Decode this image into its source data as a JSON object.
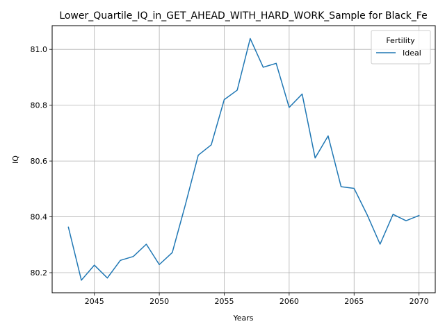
{
  "chart_data": {
    "type": "line",
    "title": "Lower_Quartile_IQ_in_GET_AHEAD_WITH_HARD_WORK_Sample for Black_Fe",
    "xlabel": "Years",
    "ylabel": "IQ",
    "xlim": [
      2041.75,
      2071.25
    ],
    "ylim": [
      80.128,
      81.085
    ],
    "x_ticks": [
      2045,
      2050,
      2055,
      2060,
      2065,
      2070
    ],
    "y_ticks": [
      80.2,
      80.4,
      80.6,
      80.8,
      81.0
    ],
    "x_tick_labels": [
      "2045",
      "2050",
      "2055",
      "2060",
      "2065",
      "2070"
    ],
    "y_tick_labels": [
      "80.2",
      "80.4",
      "80.6",
      "80.8",
      "81.0"
    ],
    "grid": true,
    "legend": {
      "title": "Fertility",
      "placement": "top-right",
      "entries": [
        "Ideal"
      ]
    },
    "series": [
      {
        "name": "Ideal",
        "color": "#1f77b4",
        "x": [
          2043,
          2044,
          2045,
          2046,
          2047,
          2048,
          2049,
          2050,
          2051,
          2052,
          2053,
          2054,
          2055,
          2056,
          2057,
          2058,
          2059,
          2060,
          2061,
          2062,
          2063,
          2064,
          2065,
          2066,
          2067,
          2068,
          2069,
          2070
        ],
        "values": [
          80.363,
          80.173,
          80.227,
          80.181,
          80.244,
          80.258,
          80.302,
          80.229,
          80.272,
          80.442,
          80.621,
          80.658,
          80.82,
          80.854,
          81.039,
          80.936,
          80.95,
          80.792,
          80.84,
          80.611,
          80.69,
          80.508,
          80.502,
          80.408,
          80.302,
          80.409,
          80.386,
          80.405
        ]
      }
    ]
  }
}
